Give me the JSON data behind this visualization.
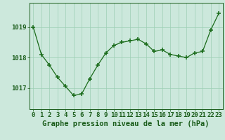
{
  "x": [
    0,
    1,
    2,
    3,
    4,
    5,
    6,
    7,
    8,
    9,
    10,
    11,
    12,
    13,
    14,
    15,
    16,
    17,
    18,
    19,
    20,
    21,
    22,
    23
  ],
  "y": [
    1019.0,
    1018.1,
    1017.75,
    1017.35,
    1017.05,
    1016.75,
    1016.8,
    1017.3,
    1017.75,
    1018.15,
    1018.4,
    1018.5,
    1018.55,
    1018.6,
    1018.45,
    1018.2,
    1018.25,
    1018.1,
    1018.05,
    1018.0,
    1018.15,
    1018.2,
    1018.9,
    1019.45
  ],
  "line_color": "#1a6b1a",
  "marker_color": "#1a6b1a",
  "bg_color": "#cce8dc",
  "grid_color": "#9ecfb4",
  "title": "Graphe pression niveau de la mer (hPa)",
  "title_color": "#1a5c1a",
  "yticks": [
    1017,
    1018,
    1019
  ],
  "ylim": [
    1016.3,
    1019.8
  ],
  "xlim": [
    -0.5,
    23.5
  ],
  "title_fontsize": 7.5,
  "tick_fontsize": 6.5,
  "axis_color": "#1a5c1a"
}
